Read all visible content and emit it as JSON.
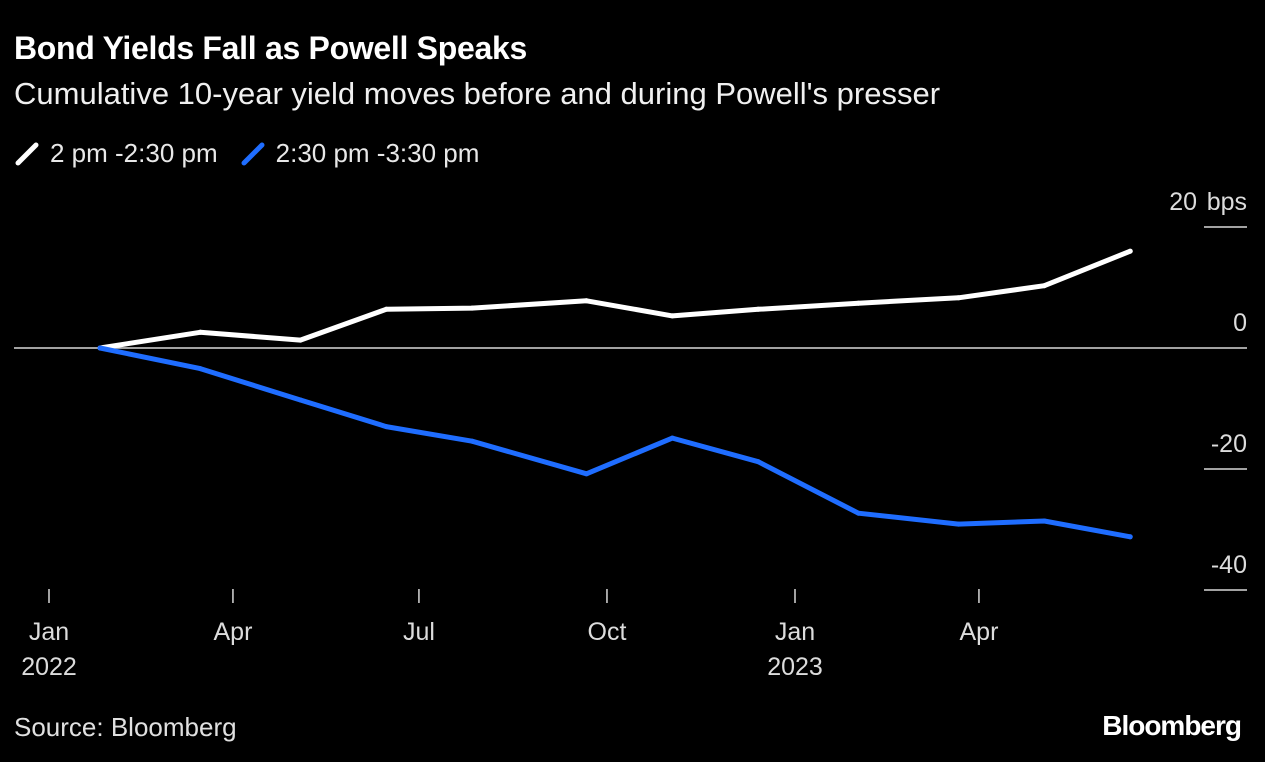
{
  "header": {
    "title": "Bond Yields Fall as Powell Speaks",
    "subtitle": "Cumulative 10-year yield moves before and during Powell's presser"
  },
  "footer": {
    "source": "Source: Bloomberg",
    "logo_text": "Bloomberg"
  },
  "chart_data": {
    "type": "line",
    "title": "Bond Yields Fall as Powell Speaks",
    "subtitle": "Cumulative 10-year yield moves before and during Powell's presser",
    "y_unit": "bps",
    "ylim": [
      -40,
      20
    ],
    "y_ticks": [
      {
        "value": 20,
        "label": "20",
        "unit": "bps"
      },
      {
        "value": 0,
        "label": "0",
        "unit": ""
      },
      {
        "value": -20,
        "label": "-20",
        "unit": ""
      },
      {
        "value": -40,
        "label": "-40",
        "unit": ""
      }
    ],
    "xlim": [
      "2022-01-01",
      "2023-07-15"
    ],
    "x_ticks": [
      {
        "date": "2022-01-01",
        "label": "Jan",
        "sublabel": "2022"
      },
      {
        "date": "2022-04-01",
        "label": "Apr",
        "sublabel": ""
      },
      {
        "date": "2022-07-01",
        "label": "Jul",
        "sublabel": ""
      },
      {
        "date": "2022-10-01",
        "label": "Oct",
        "sublabel": ""
      },
      {
        "date": "2023-01-01",
        "label": "Jan",
        "sublabel": "2023"
      },
      {
        "date": "2023-04-01",
        "label": "Apr",
        "sublabel": ""
      }
    ],
    "legend_position": "top-left",
    "grid": false,
    "x": [
      "2022-01-26",
      "2022-03-16",
      "2022-05-04",
      "2022-06-15",
      "2022-07-27",
      "2022-09-21",
      "2022-11-02",
      "2022-12-14",
      "2023-02-01",
      "2023-03-22",
      "2023-05-03",
      "2023-06-14"
    ],
    "series": [
      {
        "name": "2 pm -2:30 pm",
        "color": "#ffffff",
        "values": [
          0,
          2.6,
          1.3,
          6.4,
          6.6,
          7.8,
          5.3,
          6.4,
          7.4,
          8.3,
          10.3,
          16.0
        ]
      },
      {
        "name": "2:30 pm -3:30 pm",
        "color": "#1f6dff",
        "values": [
          0,
          -3.4,
          -8.6,
          -13.0,
          -15.4,
          -20.8,
          -14.9,
          -18.8,
          -27.3,
          -29.1,
          -28.6,
          -31.2
        ]
      }
    ]
  }
}
